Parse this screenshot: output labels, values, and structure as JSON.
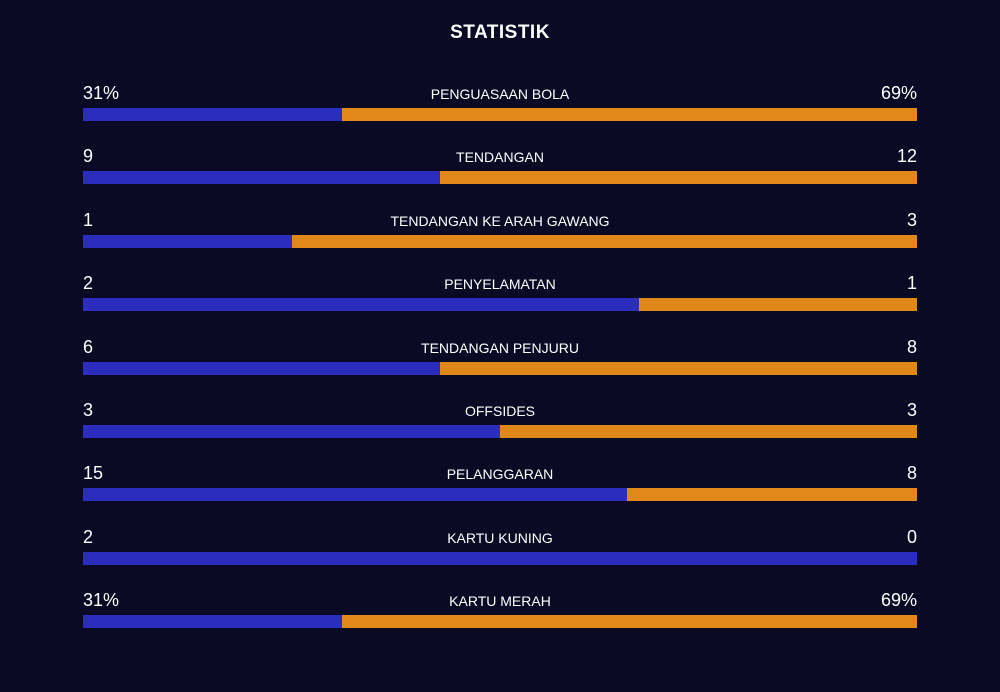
{
  "title": "STATISTIK",
  "home_color": "#2a2dbd",
  "away_color": "#e0891a",
  "stats": [
    {
      "label": "PENGUASAAN BOLA",
      "home": {
        "value": 31,
        "label": "31%"
      },
      "away": {
        "value": 69,
        "label": "69%"
      }
    },
    {
      "label": "TENDANGAN",
      "home": 9,
      "away": 12
    },
    {
      "label": "TENDANGAN KE ARAH GAWANG",
      "home": 1,
      "away": 3
    },
    {
      "label": "PENYELAMATAN",
      "home": 2,
      "away": 1
    },
    {
      "label": "TENDANGAN PENJURU",
      "home": 6,
      "away": 8
    },
    {
      "label": "OFFSIDES",
      "home": 3,
      "away": 3
    },
    {
      "label": "PELANGGARAN",
      "home": 15,
      "away": 8
    },
    {
      "label": "KARTU KUNING",
      "home": 2,
      "away": 0
    },
    {
      "label": "KARTU MERAH",
      "home": {
        "value": 31,
        "label": "31%"
      },
      "away": {
        "value": 69,
        "label": "69%"
      }
    }
  ]
}
